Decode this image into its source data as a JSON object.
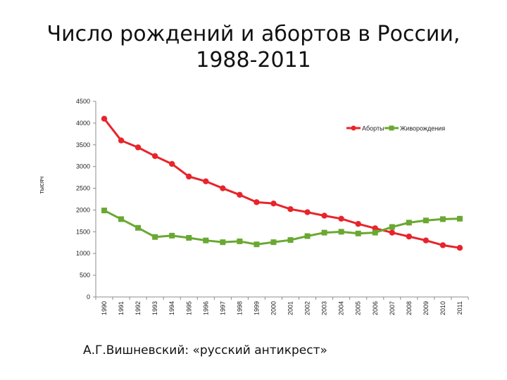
{
  "slide": {
    "title_line1": "Число рождений и абортов в России,",
    "title_line2": "1988-2011",
    "caption": "А.Г.Вишневский: «русский антикрест»"
  },
  "chart_data": {
    "type": "line",
    "title": "",
    "xlabel": "",
    "ylabel": "тысяч",
    "ylim": [
      0,
      4500
    ],
    "yticks": [
      0,
      500,
      1000,
      1500,
      2000,
      2500,
      3000,
      3500,
      4000,
      4500
    ],
    "grid": false,
    "legend_position": "top-right",
    "categories": [
      "1990",
      "1991",
      "1992",
      "1993",
      "1994",
      "1995",
      "1996",
      "1997",
      "1998",
      "1999",
      "2000",
      "2001",
      "2002",
      "2003",
      "2004",
      "2005",
      "2006",
      "2007",
      "2008",
      "2009",
      "2010",
      "2011"
    ],
    "series": [
      {
        "name": "Аборты",
        "color": "#e8242b",
        "marker": "circle",
        "values": [
          4100,
          3600,
          3440,
          3240,
          3060,
          2770,
          2660,
          2500,
          2350,
          2180,
          2150,
          2020,
          1950,
          1870,
          1800,
          1680,
          1580,
          1480,
          1390,
          1300,
          1190,
          1130
        ]
      },
      {
        "name": "Живорождения",
        "color": "#6aa832",
        "marker": "square",
        "values": [
          1990,
          1790,
          1590,
          1380,
          1410,
          1360,
          1300,
          1260,
          1280,
          1210,
          1260,
          1310,
          1400,
          1480,
          1500,
          1460,
          1480,
          1610,
          1710,
          1760,
          1790,
          1800
        ]
      }
    ]
  }
}
